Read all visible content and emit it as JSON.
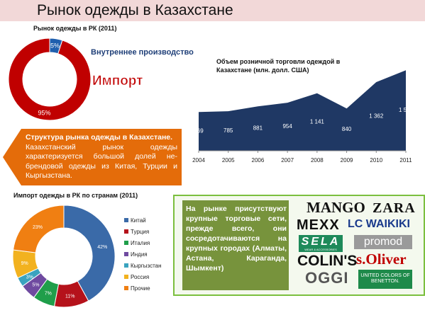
{
  "page": {
    "title": "Рынок одежды в Казахстане",
    "info_heading": "Структура рынка одежды в Казахстане.",
    "info_body": "Казахстанский рынок одежды характеризуется большой долей не-брендовой одежды из Китая, Турции и Кыргызстана.",
    "network_text": "На рынке присутствуют крупные торговые сети, прежде всего, они сосредотачиваются на крупных городах (Алматы, Астана, Караганда, Шымкент)",
    "brands": [
      "MANGO",
      "ZARA",
      "MEXX",
      "LC WAIKIKI",
      "SELA",
      "promod",
      "COLIN'S",
      "s.Oliver",
      "OGGI",
      "UNITED COLORS OF BENETTON."
    ],
    "brand_sublabels": {
      "sela": "WEAR & ACCESSORIES"
    }
  },
  "colors": {
    "import_red": "#c00000",
    "domestic_blue": "#1f5fae",
    "retail_navy": "#1f3864",
    "orange": "#e46c0a",
    "green": "#77933c"
  },
  "chart_data": [
    {
      "type": "pie",
      "title": "Рынок одежды в РК (2011)",
      "categories": [
        "Внутреннее производство",
        "Импорт"
      ],
      "values": [
        5,
        95
      ],
      "labels": [
        "5%",
        "95%"
      ],
      "colors": [
        "#1f5fae",
        "#c00000"
      ],
      "annotations": {
        "domestic": "Внутреннее производство",
        "import": "Импорт"
      }
    },
    {
      "type": "area",
      "title": "Объем розничной торговли одеждой в Казахстане (млн. долл. США)",
      "x": [
        "2004",
        "2005",
        "2006",
        "2007",
        "2008",
        "2009",
        "2010",
        "2011"
      ],
      "values": [
        769,
        785,
        881,
        954,
        1141,
        840,
        1362,
        1599
      ],
      "labels": [
        "769",
        "785",
        "881",
        "954",
        "1 141",
        "840",
        "1 362",
        "1 599"
      ],
      "color": "#1f3864",
      "ylim": [
        0,
        1700
      ],
      "grid": false,
      "legend": "none"
    },
    {
      "type": "pie",
      "title": "Импорт одежды в РК  по странам (2011)",
      "categories": [
        "Китай",
        "Турция",
        "Италия",
        "Индия",
        "Кыргызстан",
        "Россия",
        "Прочие"
      ],
      "values": [
        42,
        11,
        7,
        5,
        3,
        9,
        23
      ],
      "labels": [
        "42%",
        "11%",
        "7%",
        "5%",
        "3%",
        "9%",
        "23%"
      ],
      "colors": [
        "#3a6aa8",
        "#b5121b",
        "#1f9e4a",
        "#6f4aa0",
        "#3aa3bf",
        "#f2b21f",
        "#f07f12"
      ],
      "legend": "right"
    }
  ]
}
